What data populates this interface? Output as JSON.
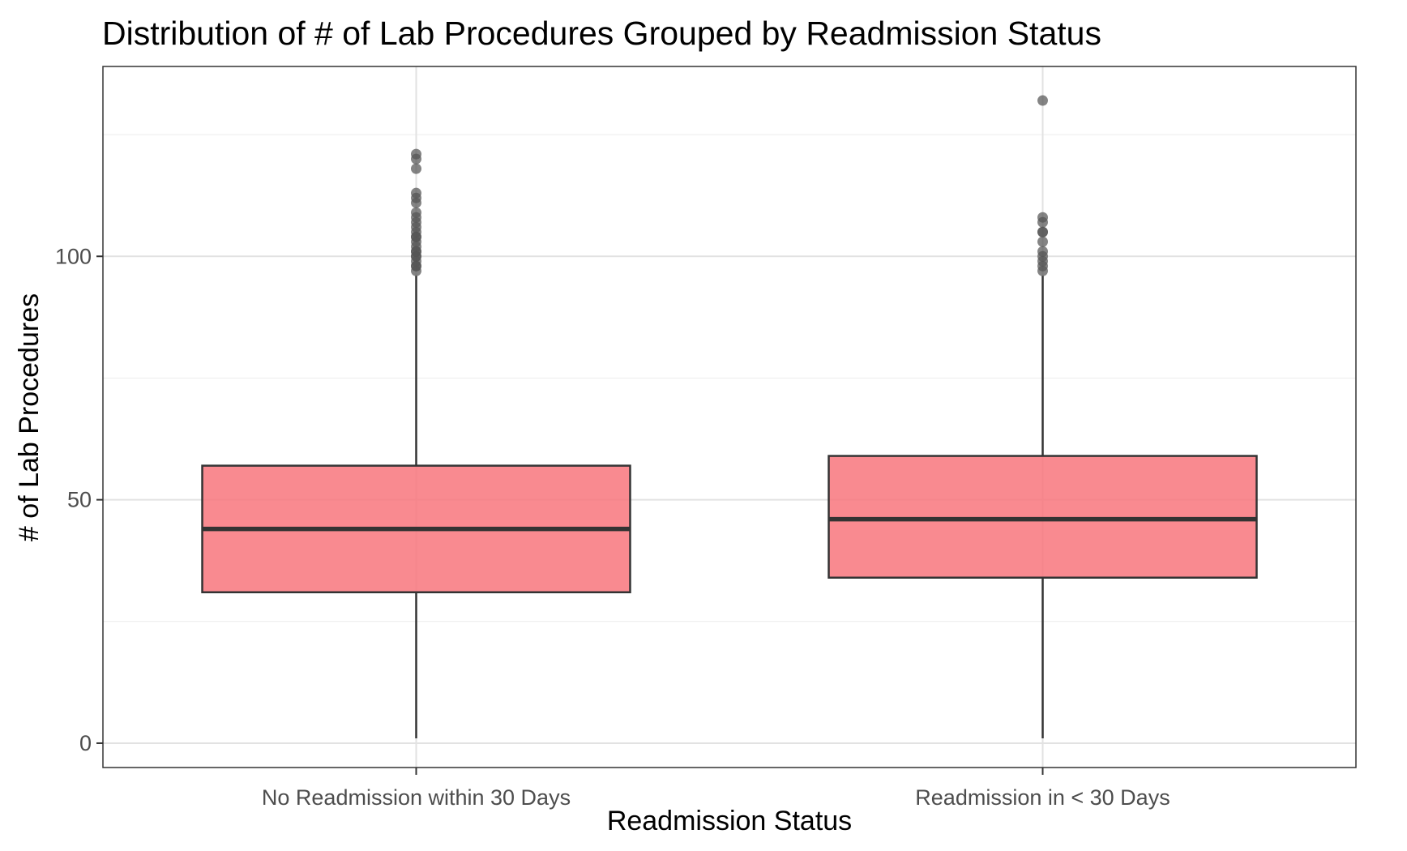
{
  "chart_data": {
    "type": "boxplot",
    "title": "Distribution of # of Lab Procedures Grouped by Readmission Status",
    "xlabel": "Readmission Status",
    "ylabel": "# of Lab Procedures",
    "categories": [
      "No Readmission within 30 Days",
      "Readmission in < 30 Days"
    ],
    "ylim": [
      -5,
      139
    ],
    "y_ticks": [
      0,
      50,
      100
    ],
    "y_minor_gridlines": [
      25,
      75,
      125
    ],
    "grid": true,
    "legend": "none",
    "fill_color": "#f8767d",
    "fill_opacity": 0.85,
    "outline_color": "#333333",
    "outlier_color": "#555555",
    "boxes": [
      {
        "category": "No Readmission within 30 Days",
        "min": 1,
        "q1": 31,
        "median": 44,
        "q3": 57,
        "max": 96,
        "outliers": [
          97,
          98,
          98,
          99,
          100,
          100,
          101,
          101,
          102,
          103,
          104,
          104,
          105,
          106,
          107,
          108,
          109,
          111,
          112,
          113,
          118,
          120,
          121
        ]
      },
      {
        "category": "Readmission in < 30 Days",
        "min": 1,
        "q1": 34,
        "median": 46,
        "q3": 59,
        "max": 96,
        "outliers": [
          97,
          98,
          99,
          100,
          101,
          103,
          105,
          105,
          107,
          108,
          132
        ]
      }
    ]
  }
}
